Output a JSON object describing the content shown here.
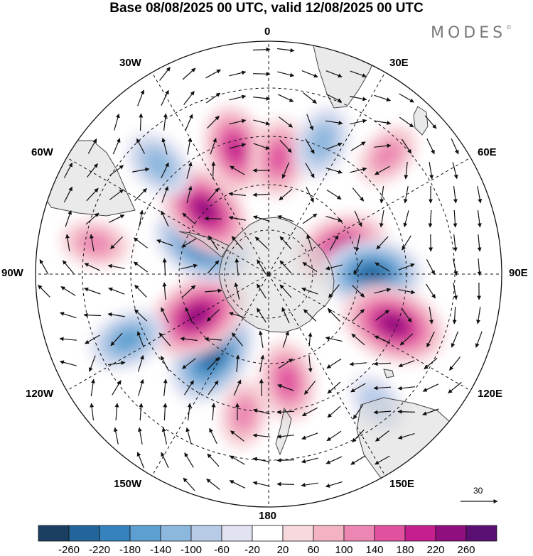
{
  "title": "Base 08/08/2025 00 UTC, valid 12/08/2025 00 UTC",
  "brand": "MODES",
  "brand_mark": "©",
  "longitude_labels": {
    "top": "0",
    "e30": "30E",
    "e60": "60E",
    "e90": "90E",
    "e120": "120E",
    "e150": "150E",
    "bottom": "180",
    "w150": "150W",
    "w120": "120W",
    "w90": "90W",
    "w60": "60W",
    "w30": "30W"
  },
  "reference_vector": {
    "label": "30"
  },
  "colorbar": {
    "levels": [
      "-260",
      "-220",
      "-180",
      "-140",
      "-100",
      "-60",
      "-20",
      "20",
      "60",
      "100",
      "140",
      "180",
      "220",
      "260"
    ],
    "colors": [
      "#1b3f63",
      "#23659a",
      "#3682bd",
      "#5d9fd0",
      "#8db8de",
      "#b7cbe7",
      "#e2e3f2",
      "#ffffff",
      "#f8dade",
      "#f3b3c3",
      "#ec86b2",
      "#e0529f",
      "#c41f8d",
      "#8f0f7f",
      "#5a1073"
    ]
  },
  "anomaly_centers": [
    {
      "lon": -15,
      "lat": -40,
      "value": 180
    },
    {
      "lon": 5,
      "lat": -45,
      "value": 140
    },
    {
      "lon": 22,
      "lat": -35,
      "value": -120
    },
    {
      "lon": 45,
      "lat": -25,
      "value": 100
    },
    {
      "lon": 70,
      "lat": -60,
      "value": 200
    },
    {
      "lon": 90,
      "lat": -50,
      "value": -220
    },
    {
      "lon": 112,
      "lat": -38,
      "value": 250
    },
    {
      "lon": 140,
      "lat": -25,
      "value": -80
    },
    {
      "lon": 170,
      "lat": -48,
      "value": 150
    },
    {
      "lon": -170,
      "lat": -35,
      "value": 100
    },
    {
      "lon": -145,
      "lat": -52,
      "value": -240
    },
    {
      "lon": -120,
      "lat": -58,
      "value": 250
    },
    {
      "lon": -115,
      "lat": -30,
      "value": -140
    },
    {
      "lon": -80,
      "lat": -22,
      "value": 100
    },
    {
      "lon": -65,
      "lat": -62,
      "value": -230
    },
    {
      "lon": -45,
      "lat": -55,
      "value": 230
    },
    {
      "lon": -45,
      "lat": -30,
      "value": -120
    }
  ]
}
